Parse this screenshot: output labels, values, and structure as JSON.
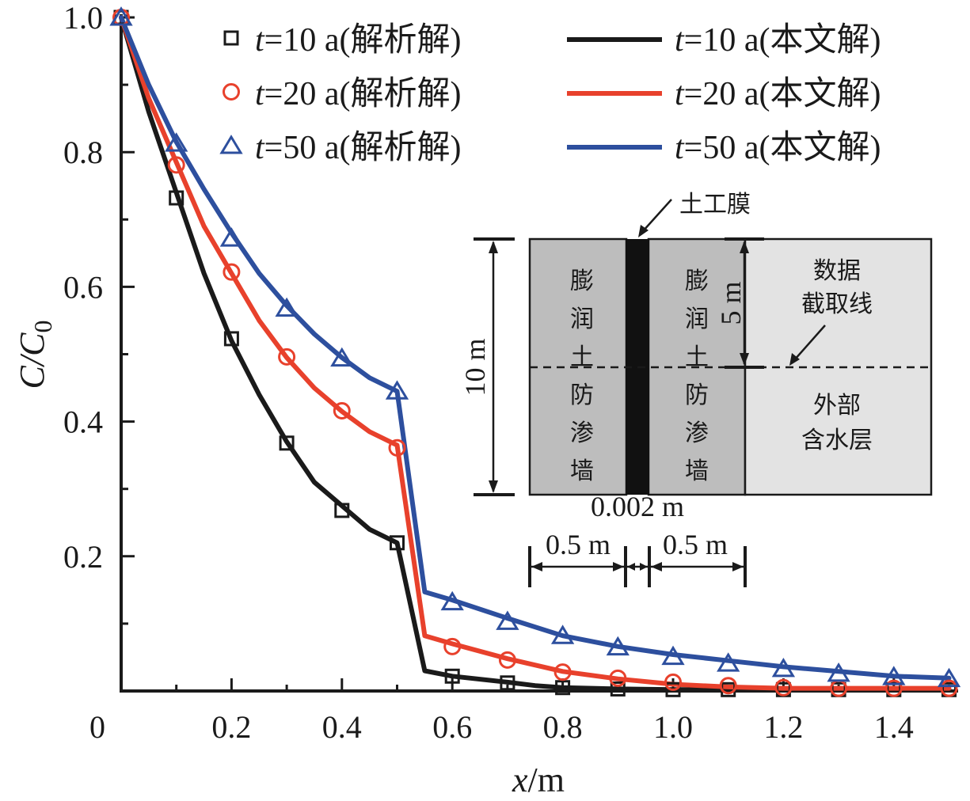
{
  "chart_data": {
    "type": "line",
    "title": "",
    "xlabel": "x/m",
    "ylabel": "C/C0",
    "xlim": [
      0,
      1.52
    ],
    "ylim": [
      0,
      1.0
    ],
    "x_ticks": [
      0,
      0.2,
      0.4,
      0.6,
      0.8,
      1.0,
      1.2,
      1.4
    ],
    "x_tick_labels": [
      "0",
      "0.2",
      "0.4",
      "0.6",
      "0.8",
      "1.0",
      "1.2",
      "1.4"
    ],
    "y_ticks": [
      0.2,
      0.4,
      0.6,
      0.8,
      1.0
    ],
    "y_tick_labels": [
      "0.2",
      "0.4",
      "0.6",
      "0.8",
      "1.0"
    ],
    "grid": false,
    "legend_position": "top",
    "colors": {
      "t10": "#1a1a1a",
      "t20": "#e8412c",
      "t50": "#2d4f9e"
    },
    "analytical": [
      {
        "name": "t=10 a(解析解)",
        "marker": "square",
        "color_key": "t10",
        "x": [
          0,
          0.1,
          0.2,
          0.3,
          0.4,
          0.5,
          0.6,
          0.7,
          0.8,
          0.9,
          1.0,
          1.1,
          1.2,
          1.3,
          1.4,
          1.5
        ],
        "y": [
          1.0,
          0.732,
          0.523,
          0.368,
          0.268,
          0.22,
          0.022,
          0.012,
          0.005,
          0.003,
          0.002,
          0.002,
          0.002,
          0.002,
          0.002,
          0.002
        ]
      },
      {
        "name": "t=20 a(解析解)",
        "marker": "circle",
        "color_key": "t20",
        "x": [
          0,
          0.1,
          0.2,
          0.3,
          0.4,
          0.5,
          0.6,
          0.7,
          0.8,
          0.9,
          1.0,
          1.1,
          1.2,
          1.3,
          1.4,
          1.5
        ],
        "y": [
          1.0,
          0.781,
          0.622,
          0.496,
          0.416,
          0.361,
          0.066,
          0.046,
          0.028,
          0.019,
          0.013,
          0.008,
          0.005,
          0.004,
          0.004,
          0.004
        ]
      },
      {
        "name": "t=50 a(解析解)",
        "marker": "triangle",
        "color_key": "t50",
        "x": [
          0,
          0.1,
          0.2,
          0.3,
          0.4,
          0.5,
          0.6,
          0.7,
          0.8,
          0.9,
          1.0,
          1.1,
          1.2,
          1.3,
          1.4,
          1.5
        ],
        "y": [
          1.0,
          0.813,
          0.672,
          0.568,
          0.494,
          0.445,
          0.132,
          0.103,
          0.082,
          0.065,
          0.051,
          0.041,
          0.033,
          0.026,
          0.021,
          0.018
        ]
      }
    ],
    "numerical": [
      {
        "name": "t=10 a(本文解)",
        "color_key": "t10",
        "x": [
          0,
          0.05,
          0.1,
          0.15,
          0.2,
          0.25,
          0.3,
          0.35,
          0.4,
          0.45,
          0.5,
          0.55,
          0.6,
          0.7,
          0.75,
          0.8,
          0.9,
          1.0,
          1.1,
          1.2,
          1.3,
          1.4,
          1.5
        ],
        "y": [
          1.0,
          0.86,
          0.74,
          0.62,
          0.52,
          0.44,
          0.37,
          0.31,
          0.275,
          0.24,
          0.22,
          0.03,
          0.022,
          0.013,
          0.008,
          0.005,
          0.003,
          0.002,
          0.002,
          0.002,
          0.002,
          0.002,
          0.002
        ]
      },
      {
        "name": "t=20 a(本文解)",
        "color_key": "t20",
        "x": [
          0,
          0.05,
          0.1,
          0.15,
          0.2,
          0.25,
          0.3,
          0.35,
          0.4,
          0.45,
          0.5,
          0.55,
          0.6,
          0.7,
          0.8,
          0.9,
          1.0,
          1.1,
          1.2,
          1.3,
          1.4,
          1.5
        ],
        "y": [
          1.0,
          0.88,
          0.785,
          0.69,
          0.62,
          0.55,
          0.495,
          0.45,
          0.415,
          0.385,
          0.365,
          0.082,
          0.07,
          0.048,
          0.029,
          0.018,
          0.01,
          0.006,
          0.004,
          0.004,
          0.004,
          0.004
        ]
      },
      {
        "name": "t=50 a(本文解)",
        "color_key": "t50",
        "x": [
          0,
          0.05,
          0.1,
          0.15,
          0.2,
          0.25,
          0.3,
          0.35,
          0.4,
          0.45,
          0.5,
          0.55,
          0.6,
          0.7,
          0.8,
          0.9,
          1.0,
          1.1,
          1.2,
          1.3,
          1.4,
          1.5
        ],
        "y": [
          1.0,
          0.9,
          0.815,
          0.745,
          0.68,
          0.62,
          0.572,
          0.53,
          0.495,
          0.465,
          0.445,
          0.147,
          0.135,
          0.108,
          0.082,
          0.066,
          0.054,
          0.045,
          0.036,
          0.029,
          0.022,
          0.019
        ]
      }
    ]
  },
  "inset": {
    "geomembrane_label": "土工膜",
    "left_wall_label": [
      "膨",
      "润",
      "土",
      "防",
      "渗",
      "墙"
    ],
    "right_wall_label": [
      "膨",
      "润",
      "土",
      "防",
      "渗",
      "墙"
    ],
    "data_line_label": [
      "数据",
      "截取线"
    ],
    "aquifer_label": [
      "外部",
      "含水层"
    ],
    "height_label": "10 m",
    "half_height_label": "5 m",
    "membrane_thickness_label": "0.002 m",
    "left_width_label": "0.5 m",
    "right_width_label": "0.5 m",
    "colors": {
      "wall": "#bdbdbd",
      "aquifer": "#e3e3e3",
      "membrane": "#111111"
    }
  }
}
